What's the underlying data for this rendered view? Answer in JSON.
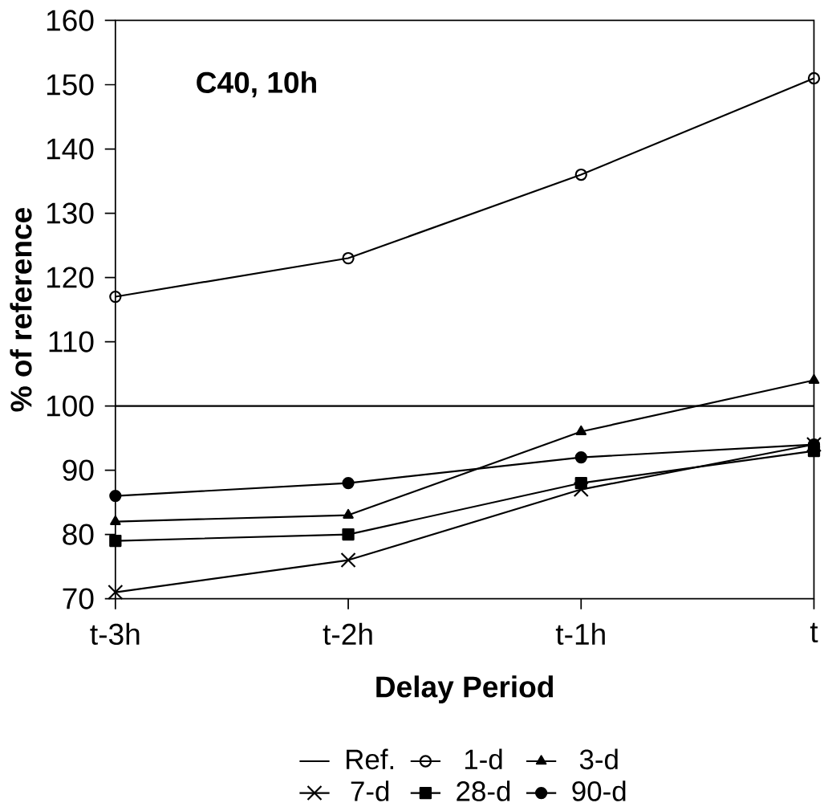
{
  "chart_data": {
    "type": "line",
    "xlabel": "Delay Period",
    "ylabel": "% of reference",
    "annotations": [
      "C40, 10h"
    ],
    "categories": [
      "t-3h",
      "t-2h",
      "t-1h",
      "t"
    ],
    "ylim": [
      70,
      160
    ],
    "yticks": [
      70,
      80,
      90,
      100,
      110,
      120,
      130,
      140,
      150,
      160
    ],
    "legend": "bottom",
    "grid": false,
    "line_style": "solid",
    "series": [
      {
        "name": "Ref.",
        "color": "#000000",
        "marker": "none",
        "values": [
          100,
          100,
          100,
          100
        ]
      },
      {
        "name": "1-d",
        "color": "#000000",
        "marker": "circle-open",
        "values": [
          117,
          123,
          136,
          151
        ]
      },
      {
        "name": "3-d",
        "color": "#000000",
        "marker": "triangle",
        "values": [
          82,
          83,
          96,
          104
        ]
      },
      {
        "name": "7-d",
        "color": "#000000",
        "marker": "cross",
        "values": [
          71,
          76,
          87,
          94
        ]
      },
      {
        "name": "28-d",
        "color": "#000000",
        "marker": "square",
        "values": [
          79,
          80,
          88,
          93
        ]
      },
      {
        "name": "90-d",
        "color": "#000000",
        "marker": "circle",
        "values": [
          86,
          88,
          92,
          94
        ]
      }
    ]
  }
}
